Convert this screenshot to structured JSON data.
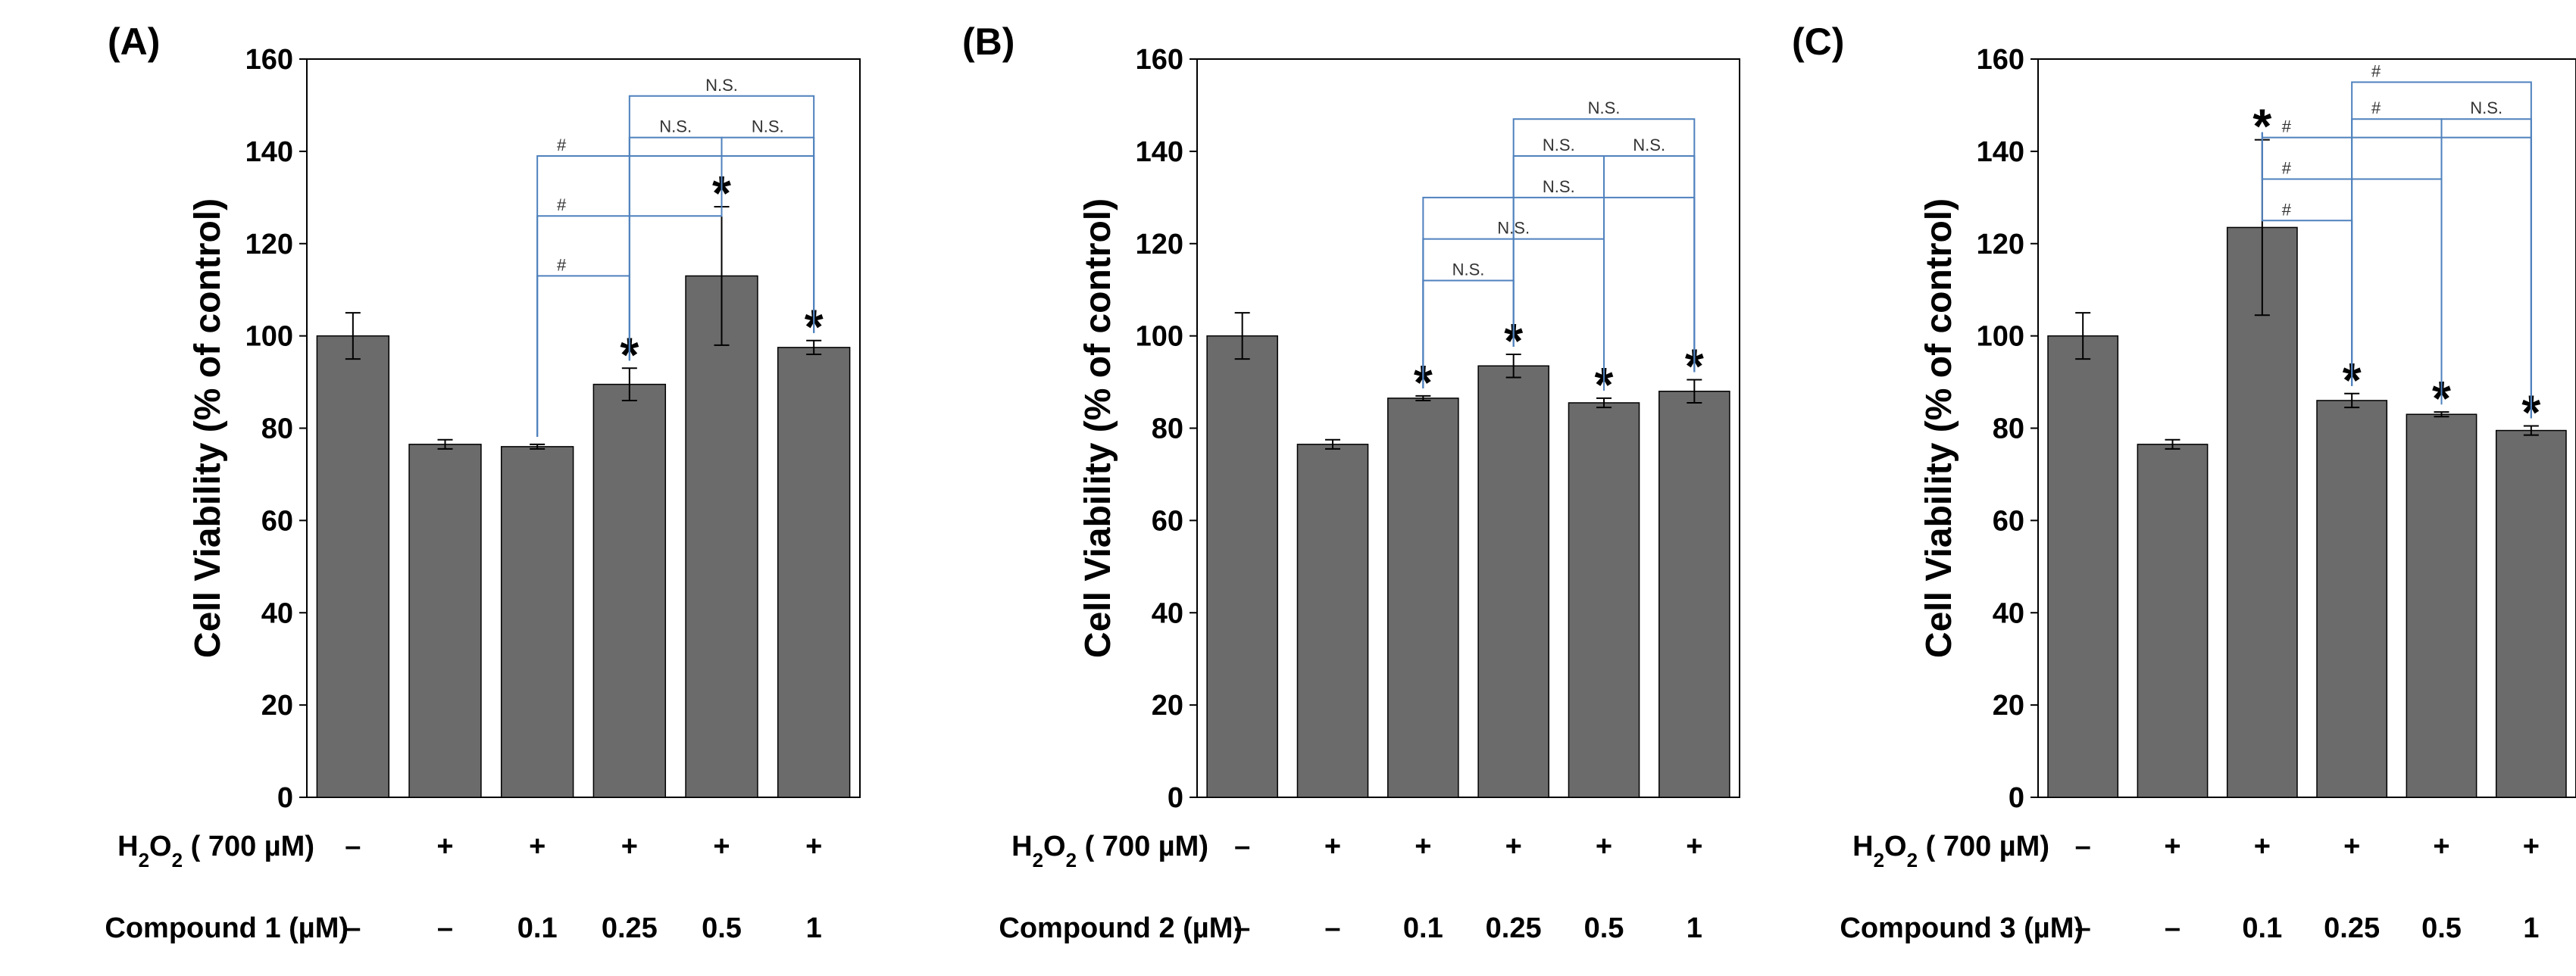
{
  "chart_data": [
    {
      "type": "bar",
      "panel_label": "(A)",
      "ylabel": "Cell  Viability (% of control)",
      "ylim": [
        0,
        160
      ],
      "yticks": [
        "0",
        "20",
        "40",
        "60",
        "80",
        "100",
        "120",
        "140",
        "160"
      ],
      "values": [
        100,
        76.5,
        76,
        89.5,
        113,
        97.5
      ],
      "errors": [
        5,
        1,
        0.5,
        3.5,
        15,
        1.5
      ],
      "stars": [
        "",
        "",
        "",
        "*",
        "*",
        "*"
      ],
      "h2o2_label": "H2O2 ( 700 µM)",
      "h2o2_values": [
        "–",
        "+",
        "+",
        "+",
        "+",
        "+"
      ],
      "compound_label": "Compound 1 (µM)",
      "compound_values": [
        "–",
        "–",
        "0.1",
        "0.25",
        "0.5",
        "1"
      ],
      "brackets": [
        {
          "from": 2,
          "to": 3,
          "level": 113,
          "label": "#"
        },
        {
          "from": 2,
          "to": 4,
          "level": 126,
          "label": "#"
        },
        {
          "from": 2,
          "to": 5,
          "level": 139,
          "label": "#"
        },
        {
          "from": 3,
          "to": 4,
          "level": 143,
          "label": "N.S."
        },
        {
          "from": 4,
          "to": 5,
          "level": 143,
          "label": "N.S."
        },
        {
          "from": 3,
          "to": 5,
          "level": 152,
          "label": "N.S."
        }
      ]
    },
    {
      "type": "bar",
      "panel_label": "(B)",
      "ylabel": "Cell  Viability (% of control)",
      "ylim": [
        0,
        160
      ],
      "yticks": [
        "0",
        "20",
        "40",
        "60",
        "80",
        "100",
        "120",
        "140",
        "160"
      ],
      "values": [
        100,
        76.5,
        86.5,
        93.5,
        85.5,
        88
      ],
      "errors": [
        5,
        1,
        0.5,
        2.5,
        1,
        2.5
      ],
      "stars": [
        "",
        "",
        "*",
        "*",
        "*",
        "*"
      ],
      "h2o2_label": "H2O2 ( 700 µM)",
      "h2o2_values": [
        "–",
        "+",
        "+",
        "+",
        "+",
        "+"
      ],
      "compound_label": "Compound 2 (µM)",
      "compound_values": [
        "–",
        "–",
        "0.1",
        "0.25",
        "0.5",
        "1"
      ],
      "brackets": [
        {
          "from": 2,
          "to": 3,
          "level": 112,
          "label": "N.S."
        },
        {
          "from": 2,
          "to": 4,
          "level": 121,
          "label": "N.S."
        },
        {
          "from": 2,
          "to": 5,
          "level": 130,
          "label": "N.S."
        },
        {
          "from": 3,
          "to": 4,
          "level": 139,
          "label": "N.S."
        },
        {
          "from": 4,
          "to": 5,
          "level": 139,
          "label": "N.S."
        },
        {
          "from": 3,
          "to": 5,
          "level": 147,
          "label": "N.S."
        }
      ]
    },
    {
      "type": "bar",
      "panel_label": "(C)",
      "ylabel": "Cell  Viability (% of control)",
      "ylim": [
        0,
        160
      ],
      "yticks": [
        "0",
        "20",
        "40",
        "60",
        "80",
        "100",
        "120",
        "140",
        "160"
      ],
      "values": [
        100,
        76.5,
        123.5,
        86,
        83,
        79.5
      ],
      "errors": [
        5,
        1,
        19,
        1.5,
        0.5,
        1
      ],
      "stars": [
        "",
        "",
        "*",
        "*",
        "*",
        "*"
      ],
      "h2o2_label": "H2O2 ( 700 µM)",
      "h2o2_values": [
        "–",
        "+",
        "+",
        "+",
        "+",
        "+"
      ],
      "compound_label": "Compound 3 (µM)",
      "compound_values": [
        "–",
        "–",
        "0.1",
        "0.25",
        "0.5",
        "1"
      ],
      "brackets": [
        {
          "from": 2,
          "to": 3,
          "level": 125,
          "label": "#"
        },
        {
          "from": 2,
          "to": 4,
          "level": 134,
          "label": "#"
        },
        {
          "from": 2,
          "to": 5,
          "level": 143,
          "label": "#"
        },
        {
          "from": 3,
          "to": 4,
          "level": 147,
          "label": "#"
        },
        {
          "from": 4,
          "to": 5,
          "level": 147,
          "label": "N.S."
        },
        {
          "from": 3,
          "to": 5,
          "level": 155,
          "label": "#"
        }
      ]
    }
  ],
  "colors": {
    "bar_fill": "#6b6b6b",
    "bar_stroke": "#000000",
    "bracket": "#4f81bd",
    "axis": "#000000"
  }
}
